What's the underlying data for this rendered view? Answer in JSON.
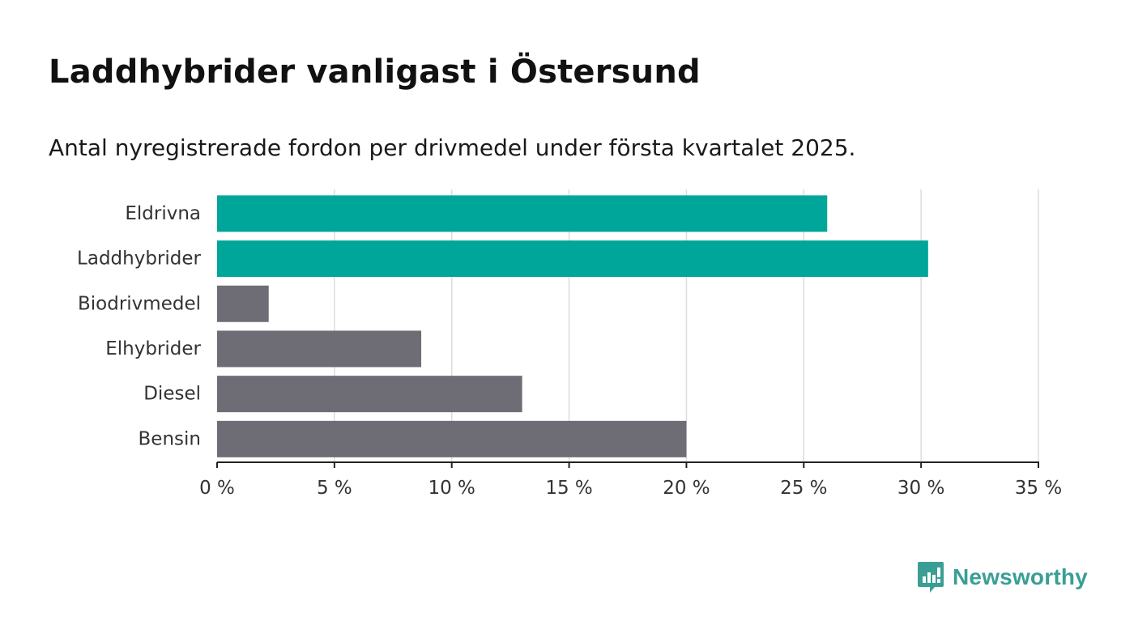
{
  "header": {
    "title": "Laddhybrider vanligast i Östersund",
    "subtitle": "Antal nyregistrerade fordon per drivmedel under första kvartalet 2025."
  },
  "brand": {
    "name": "Newsworthy",
    "color": "#3a9e94",
    "icon": "newsworthy-logo-icon"
  },
  "colors": {
    "highlight": "#00a699",
    "default": "#6e6d75",
    "grid": "#dcdcdc",
    "axis": "#222222"
  },
  "chart_data": {
    "type": "bar",
    "orientation": "horizontal",
    "categories": [
      "Eldrivna",
      "Laddhybrider",
      "Biodrivmedel",
      "Elhybrider",
      "Diesel",
      "Bensin"
    ],
    "values": [
      26.0,
      30.3,
      2.2,
      8.7,
      13.0,
      20.0
    ],
    "highlighted": [
      true,
      true,
      false,
      false,
      false,
      false
    ],
    "xlim": [
      0,
      35
    ],
    "xticks": [
      0,
      5,
      10,
      15,
      20,
      25,
      30,
      35
    ],
    "tick_labels": [
      "0 %",
      "5 %",
      "10 %",
      "15 %",
      "20 %",
      "25 %",
      "30 %",
      "35 %"
    ],
    "grid": true,
    "title": "Laddhybrider vanligast i Östersund",
    "xlabel": "",
    "ylabel": ""
  }
}
